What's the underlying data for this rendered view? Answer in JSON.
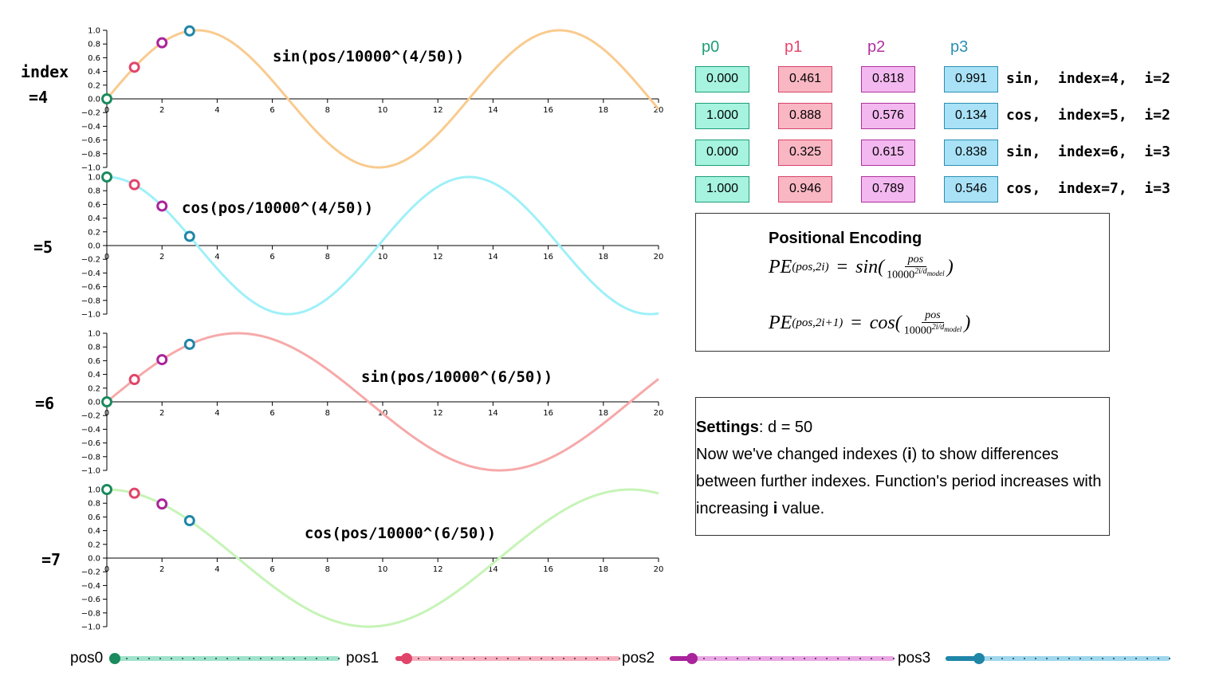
{
  "side_labels": [
    "index",
    "=4",
    "=5",
    "=6",
    "=7"
  ],
  "chart_data": [
    {
      "type": "line",
      "label": "sin(pos/10000^(4/50))",
      "fn": "sin",
      "exponent": 0.08,
      "color": "#f9cb8f",
      "xlim": [
        0,
        20
      ],
      "ylim": [
        -1.0,
        1.0
      ],
      "xticks": [
        0,
        2,
        4,
        6,
        8,
        10,
        12,
        14,
        16,
        18,
        20
      ],
      "yticks": [
        1.0,
        0.8,
        0.6,
        0.4,
        0.2,
        0.0,
        -0.2,
        -0.4,
        -0.6,
        -0.8,
        -1.0
      ],
      "points": [
        {
          "x": 0,
          "y": 0.0
        },
        {
          "x": 1,
          "y": 0.461
        },
        {
          "x": 2,
          "y": 0.818
        },
        {
          "x": 3,
          "y": 0.991
        }
      ]
    },
    {
      "type": "line",
      "label": "cos(pos/10000^(4/50))",
      "fn": "cos",
      "exponent": 0.08,
      "color": "#9ff0f8",
      "xlim": [
        0,
        20
      ],
      "ylim": [
        -1.0,
        1.0
      ],
      "xticks": [
        0,
        2,
        4,
        6,
        8,
        10,
        12,
        14,
        16,
        18,
        20
      ],
      "yticks": [
        1.0,
        0.8,
        0.6,
        0.4,
        0.2,
        0.0,
        -0.2,
        -0.4,
        -0.6,
        -0.8,
        -1.0
      ],
      "points": [
        {
          "x": 0,
          "y": 1.0
        },
        {
          "x": 1,
          "y": 0.888
        },
        {
          "x": 2,
          "y": 0.576
        },
        {
          "x": 3,
          "y": 0.134
        }
      ]
    },
    {
      "type": "line",
      "label": "sin(pos/10000^(6/50))",
      "fn": "sin",
      "exponent": 0.12,
      "color": "#f6a9a9",
      "xlim": [
        0,
        20
      ],
      "ylim": [
        -1.0,
        1.0
      ],
      "xticks": [
        0,
        2,
        4,
        6,
        8,
        10,
        12,
        14,
        16,
        18,
        20
      ],
      "yticks": [
        1.0,
        0.8,
        0.6,
        0.4,
        0.2,
        0.0,
        -0.2,
        -0.4,
        -0.6,
        -0.8,
        -1.0
      ],
      "points": [
        {
          "x": 0,
          "y": 0.0
        },
        {
          "x": 1,
          "y": 0.325
        },
        {
          "x": 2,
          "y": 0.615
        },
        {
          "x": 3,
          "y": 0.838
        }
      ]
    },
    {
      "type": "line",
      "label": "cos(pos/10000^(6/50))",
      "fn": "cos",
      "exponent": 0.12,
      "color": "#c6f4b6",
      "xlim": [
        0,
        20
      ],
      "ylim": [
        -1.0,
        1.0
      ],
      "xticks": [
        0,
        2,
        4,
        6,
        8,
        10,
        12,
        14,
        16,
        18,
        20
      ],
      "yticks": [
        1.0,
        0.8,
        0.6,
        0.4,
        0.2,
        0.0,
        -0.2,
        -0.4,
        -0.6,
        -0.8,
        -1.0
      ],
      "points": [
        {
          "x": 0,
          "y": 1.0
        },
        {
          "x": 1,
          "y": 0.946
        },
        {
          "x": 2,
          "y": 0.789
        },
        {
          "x": 3,
          "y": 0.546
        }
      ]
    }
  ],
  "point_colors": [
    "#1b8a5e",
    "#e0456a",
    "#a9239b",
    "#1f86a8"
  ],
  "table": {
    "columns": [
      "p0",
      "p1",
      "p2",
      "p3"
    ],
    "column_colors": [
      "#1b9e77",
      "#e7466b",
      "#b0309f",
      "#2b8fb3"
    ],
    "cell_fills": [
      "#a6f3df",
      "#f8b7c3",
      "#f3b8ef",
      "#a9e1f6"
    ],
    "cell_borders": [
      "#1b9e77",
      "#d8436a",
      "#b0309f",
      "#2b8fb3"
    ],
    "rows": [
      {
        "values": [
          "0.000",
          "0.461",
          "0.818",
          "0.991"
        ],
        "label": "sin,  index=4,  i=2"
      },
      {
        "values": [
          "1.000",
          "0.888",
          "0.576",
          "0.134"
        ],
        "label": "cos,  index=5,  i=2"
      },
      {
        "values": [
          "0.000",
          "0.325",
          "0.615",
          "0.838"
        ],
        "label": "sin,  index=6,  i=3"
      },
      {
        "values": [
          "1.000",
          "0.946",
          "0.789",
          "0.546"
        ],
        "label": "cos,  index=7,  i=3"
      }
    ]
  },
  "encoding_box": {
    "title": "Positional Encoding",
    "pe": "PE",
    "sub1": "(pos,2i)",
    "sub2": "(pos,2i+1)",
    "eq": "=",
    "sin": "sin(",
    "cos": "cos(",
    "close": ")",
    "numerator": "pos",
    "denominator_base": "10000",
    "exp_top": "2i/d",
    "exp_sub": "model"
  },
  "settings": {
    "title": "Settings",
    "value": ": d = 50",
    "text1": "Now we've changed indexes (",
    "bold_i": "i",
    "text2": ") to show differences between further indexes. Function's period increases with increasing ",
    "text3": " value."
  },
  "sliders": [
    {
      "label": "pos0",
      "value": 0,
      "max": 20,
      "color": "#1b8a5e",
      "track": "#9fe3cb"
    },
    {
      "label": "pos1",
      "value": 1,
      "max": 20,
      "color": "#e0456a",
      "track": "#f7b0c0"
    },
    {
      "label": "pos2",
      "value": 2,
      "max": 20,
      "color": "#a9239b",
      "track": "#eaa8e4"
    },
    {
      "label": "pos3",
      "value": 3,
      "max": 20,
      "color": "#1f86a8",
      "track": "#9ed8ee"
    }
  ]
}
